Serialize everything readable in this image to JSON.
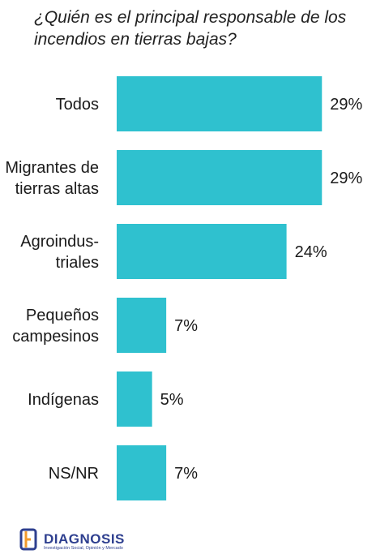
{
  "title": "¿Quién es el principal responsable de los\nincendios en tierras bajas?",
  "colors": {
    "bar": "#2fc1cf",
    "text": "#1a1a1a",
    "logo": "#2e3f8f",
    "logo_accent": "#f39a2b"
  },
  "logo": {
    "icon": "diagnosis-logo-icon",
    "name": "DIAGNOSIS",
    "tagline": "Investigación Social, Opinión y Mercado"
  },
  "chart_data": {
    "type": "bar",
    "orientation": "horizontal",
    "title": "¿Quién es el principal responsable de los incendios en tierras bajas?",
    "categories": [
      [
        "Todos"
      ],
      [
        "Migrantes de",
        "tierras altas"
      ],
      [
        "Agroindus-",
        "triales"
      ],
      [
        "Pequeños",
        "campesinos"
      ],
      [
        "Indígenas"
      ],
      [
        "NS/NR"
      ]
    ],
    "values": [
      29,
      29,
      24,
      7,
      5,
      7
    ],
    "value_labels": [
      "29%",
      "29%",
      "24%",
      "7%",
      "5%",
      "7%"
    ],
    "xlim": [
      0,
      30
    ],
    "grid": false,
    "legend": "none"
  }
}
